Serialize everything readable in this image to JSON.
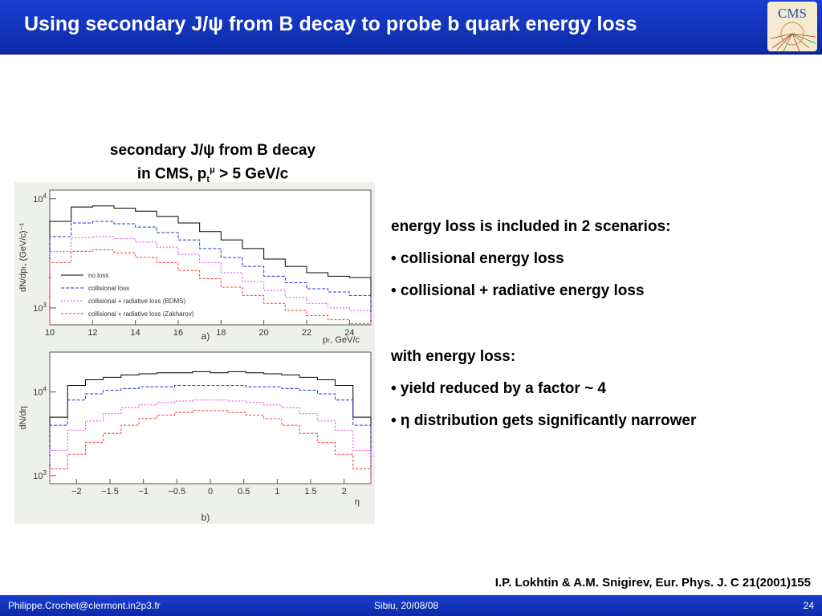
{
  "slide": {
    "title": "Using secondary J/ψ from B decay to probe b quark energy loss",
    "logo_text": "CMS",
    "caption_line1": "secondary J/ψ from B decay",
    "caption_line2_prefix": "in CMS, p",
    "caption_line2_sub": "t",
    "caption_line2_sup": "μ",
    "caption_line2_suffix": " > 5 GeV/c",
    "bullets": [
      "energy loss is included in 2 scenarios:",
      "• collisional energy loss",
      "• collisional + radiative energy loss",
      "",
      "with energy loss:",
      "• yield reduced by a factor ~ 4",
      "• η distribution gets significantly narrower"
    ],
    "reference": "I.P. Lokhtin & A.M. Snigirev, Eur. Phys. J. C 21(2001)155",
    "footer": {
      "left": "Philippe.Crochet@clermont.in2p3.fr",
      "center": "Sibiu, 20/08/08",
      "right": "24"
    },
    "colors": {
      "header": "#1436c4",
      "no_loss": "#000000",
      "collisional": "#2233dd",
      "bdms": "#e040e0",
      "zakharov": "#ff3030"
    }
  },
  "chart_data": [
    {
      "type": "line",
      "panel_label": "a)",
      "xlabel": "p_T, GeV/c",
      "ylabel": "dN/dp_T, (GeV/c)^-1",
      "xlim": [
        10,
        25
      ],
      "ylim": [
        700,
        12000
      ],
      "log_y": true,
      "x_ticks": [
        "10",
        "12",
        "14",
        "16",
        "18",
        "20",
        "22",
        "24"
      ],
      "y_ticks": [
        "10^3",
        "10^4"
      ],
      "bin_edges": [
        10,
        11,
        12,
        13,
        14,
        15,
        16,
        17,
        18,
        19,
        20,
        21,
        22,
        23,
        24,
        25
      ],
      "legend": [
        "no loss",
        "collisional loss",
        "collisional + radiative loss (BDMS)",
        "collisional + radiative loss (Zakharov)"
      ],
      "series": [
        {
          "name": "no loss",
          "values": [
            6200,
            8400,
            8600,
            8200,
            7700,
            6900,
            6000,
            5000,
            4200,
            3500,
            2800,
            2400,
            2100,
            1950,
            1900
          ]
        },
        {
          "name": "collisional loss",
          "values": [
            4500,
            6000,
            6200,
            5900,
            5500,
            4900,
            4200,
            3500,
            2900,
            2400,
            1950,
            1700,
            1500,
            1400,
            1300
          ]
        },
        {
          "name": "collisional + radiative loss (BDMS)",
          "values": [
            3300,
            4400,
            4500,
            4300,
            4000,
            3600,
            3100,
            2600,
            2100,
            1750,
            1450,
            1250,
            1100,
            1000,
            950
          ]
        },
        {
          "name": "collisional + radiative loss (Zakharov)",
          "values": [
            2600,
            3300,
            3400,
            3200,
            2900,
            2600,
            2200,
            1850,
            1550,
            1300,
            1100,
            950,
            850,
            780,
            720
          ]
        }
      ]
    },
    {
      "type": "line",
      "panel_label": "b)",
      "xlabel": "η",
      "ylabel": "dN/dη",
      "xlim": [
        -2.4,
        2.4
      ],
      "ylim": [
        800,
        30000
      ],
      "log_y": true,
      "x_ticks": [
        "−2",
        "−1.5",
        "−1",
        "−0.5",
        "0",
        "0.5",
        "1",
        "1.5",
        "2"
      ],
      "y_ticks": [
        "10^3",
        "10^4"
      ],
      "series": [
        {
          "name": "no loss",
          "values": [
            5000,
            12000,
            14000,
            15000,
            16000,
            16500,
            17000,
            17000,
            17500,
            17000,
            17500,
            17000,
            16500,
            16000,
            15000,
            14000,
            12000,
            5000
          ]
        },
        {
          "name": "collisional loss",
          "values": [
            4000,
            8000,
            9500,
            10500,
            11000,
            11500,
            11500,
            12000,
            12000,
            12000,
            12000,
            11500,
            11500,
            11000,
            10500,
            9500,
            8000,
            4000
          ]
        },
        {
          "name": "collisional + radiative loss (BDMS)",
          "values": [
            2000,
            3500,
            4500,
            5500,
            6500,
            7000,
            7500,
            7800,
            8000,
            8000,
            7800,
            7500,
            7000,
            6500,
            5500,
            4500,
            3500,
            2000
          ]
        },
        {
          "name": "collisional + radiative loss (Zakharov)",
          "values": [
            1200,
            1800,
            2500,
            3200,
            4000,
            4800,
            5300,
            5700,
            6000,
            6000,
            5700,
            5300,
            4800,
            4000,
            3200,
            2500,
            1800,
            1200
          ]
        }
      ]
    }
  ]
}
